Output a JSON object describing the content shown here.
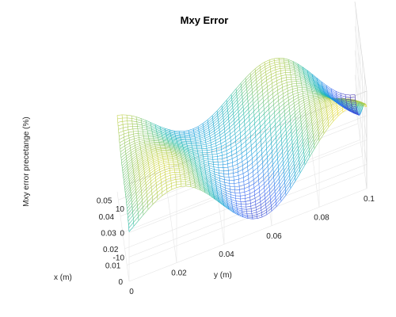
{
  "chart_data": {
    "type": "surface",
    "title": "Mxy Error",
    "xlabel": "x (m)",
    "ylabel": "y (m)",
    "zlabel": "Mxy error precetange (%)",
    "x_range": [
      0,
      0.055
    ],
    "y_range": [
      0,
      0.1
    ],
    "z_range": [
      -20,
      20
    ],
    "x_ticks": [
      {
        "value": 0,
        "label": "0"
      },
      {
        "value": 0.01,
        "label": "0.01"
      },
      {
        "value": 0.02,
        "label": "0.02"
      },
      {
        "value": 0.03,
        "label": "0.03"
      },
      {
        "value": 0.04,
        "label": "0.04"
      },
      {
        "value": 0.05,
        "label": "0.05"
      }
    ],
    "y_ticks": [
      {
        "value": 0,
        "label": "0"
      },
      {
        "value": 0.02,
        "label": "0.02"
      },
      {
        "value": 0.04,
        "label": "0.04"
      },
      {
        "value": 0.06,
        "label": "0.06"
      },
      {
        "value": 0.08,
        "label": "0.08"
      },
      {
        "value": 0.1,
        "label": "0.1"
      }
    ],
    "z_ticks": [
      {
        "value": -10,
        "label": "-10"
      },
      {
        "value": 0,
        "label": "0"
      },
      {
        "value": 10,
        "label": "10"
      }
    ],
    "grid": true,
    "colormap": "parula",
    "mesh_style": "wireframe",
    "grid_resolution": [
      40,
      50
    ]
  }
}
